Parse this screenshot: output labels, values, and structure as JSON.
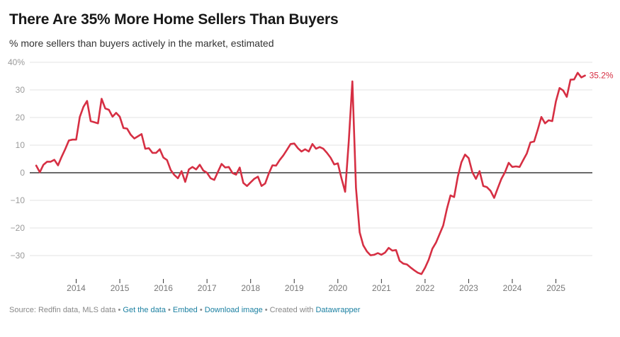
{
  "header": {
    "title": "There Are 35% More Home Sellers Than Buyers",
    "subtitle": "% more sellers than buyers actively in the market, estimated"
  },
  "chart_data": {
    "type": "line",
    "title": "There Are 35% More Home Sellers Than Buyers",
    "subtitle": "% more sellers than buyers actively in the market, estimated",
    "xlabel": "",
    "ylabel": "",
    "ylim": [
      -37,
      40
    ],
    "yticks": [
      40,
      30,
      20,
      10,
      0,
      -10,
      -20,
      -30
    ],
    "ytick_labels": [
      "40%",
      "30",
      "20",
      "10",
      "0",
      "−10",
      "−20",
      "−30"
    ],
    "xticks": [
      "2014",
      "2015",
      "2016",
      "2017",
      "2018",
      "2019",
      "2020",
      "2021",
      "2022",
      "2023",
      "2024",
      "2025"
    ],
    "x_start": "2013-02",
    "x_end": "2025-09",
    "x_frequency": "monthly",
    "grid": true,
    "line_color": "#d62f43",
    "end_label": "35.2%",
    "series": [
      {
        "name": "% more sellers than buyers",
        "values": [
          2.6,
          0.2,
          2.9,
          4.0,
          4.0,
          4.7,
          2.7,
          5.8,
          8.6,
          11.7,
          12.0,
          12.0,
          20.2,
          23.9,
          26.0,
          18.7,
          18.3,
          17.9,
          26.8,
          23.3,
          22.8,
          20.3,
          21.7,
          20.3,
          16.2,
          16.0,
          13.8,
          12.4,
          13.2,
          14.0,
          8.7,
          8.9,
          7.2,
          7.2,
          8.5,
          5.5,
          4.6,
          1.0,
          -0.8,
          -2.0,
          0.6,
          -3.3,
          1.2,
          2.1,
          1.2,
          2.9,
          0.8,
          0.0,
          -2.0,
          -2.6,
          0.3,
          3.2,
          1.9,
          2.1,
          -0.1,
          -0.7,
          1.9,
          -3.7,
          -4.8,
          -3.5,
          -2.2,
          -1.4,
          -4.8,
          -3.9,
          -0.3,
          2.7,
          2.6,
          4.6,
          6.3,
          8.3,
          10.4,
          10.6,
          8.9,
          7.7,
          8.5,
          7.7,
          10.4,
          8.7,
          9.3,
          8.7,
          7.2,
          5.5,
          3.0,
          3.4,
          -2.0,
          -6.9,
          11.3,
          33.1,
          -5.5,
          -21.6,
          -26.3,
          -28.5,
          -29.9,
          -29.7,
          -29.1,
          -29.7,
          -28.9,
          -27.2,
          -28.2,
          -28.0,
          -31.9,
          -32.9,
          -33.2,
          -34.3,
          -35.3,
          -36.2,
          -36.7,
          -34.4,
          -31.5,
          -27.5,
          -25.3,
          -22.2,
          -19.1,
          -13.1,
          -8.2,
          -8.8,
          -1.4,
          3.8,
          6.6,
          5.3,
          0.2,
          -2.2,
          0.6,
          -4.8,
          -5.2,
          -6.5,
          -9.1,
          -5.6,
          -2.2,
          0.2,
          3.6,
          2.1,
          2.3,
          2.1,
          4.6,
          7.0,
          11.0,
          11.3,
          15.6,
          20.2,
          17.9,
          19.0,
          18.7,
          25.8,
          30.7,
          29.8,
          27.5,
          33.7,
          33.8,
          36.2,
          34.5,
          35.2
        ]
      }
    ]
  },
  "footer": {
    "source": "Source: Redfin data, MLS data",
    "sep": " • ",
    "get_data": "Get the data",
    "embed": "Embed",
    "download": "Download image",
    "created_with": "Created with",
    "datawrapper": "Datawrapper"
  }
}
